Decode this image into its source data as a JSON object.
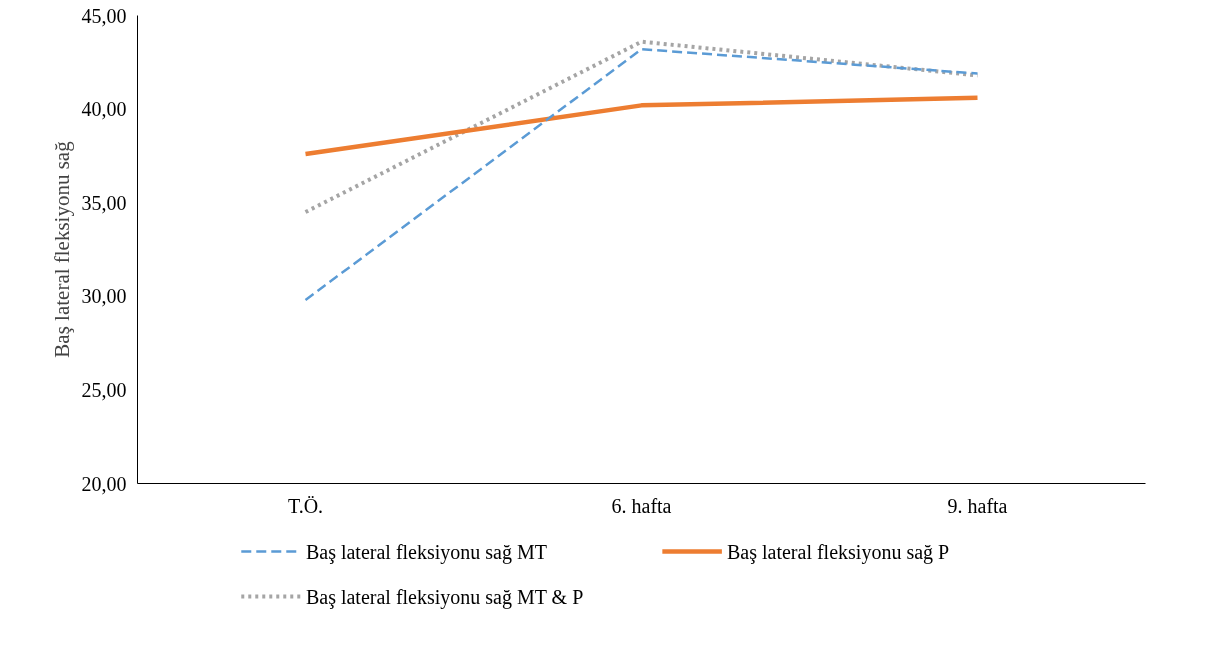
{
  "chart_data": {
    "type": "line",
    "ylabel": "Baş lateral fleksiyonu sağ",
    "categories": [
      "T.Ö.",
      "6. hafta",
      "9. hafta"
    ],
    "series": [
      {
        "name": "Baş lateral fleksiyonu sağ MT",
        "color": "#5b9bd5",
        "line_style": "dashed",
        "values": [
          29.8,
          43.2,
          41.9
        ]
      },
      {
        "name": "Baş lateral fleksiyonu sağ P",
        "color": "#ed7d31",
        "line_style": "solid",
        "values": [
          37.6,
          40.2,
          40.6
        ]
      },
      {
        "name": "Baş lateral fleksiyonu sağ MT & P",
        "color": "#a5a5a5",
        "line_style": "dotted",
        "values": [
          34.5,
          43.6,
          41.8
        ]
      }
    ],
    "ylim": [
      20,
      45
    ],
    "yticks": [
      {
        "value": 20,
        "label": "20,00"
      },
      {
        "value": 25,
        "label": "25,00"
      },
      {
        "value": 30,
        "label": "30,00"
      },
      {
        "value": 35,
        "label": "35,00"
      },
      {
        "value": 40,
        "label": "40,00"
      },
      {
        "value": 45,
        "label": "45,00"
      }
    ],
    "grid": false,
    "legend": "bottom",
    "marker": "none"
  }
}
